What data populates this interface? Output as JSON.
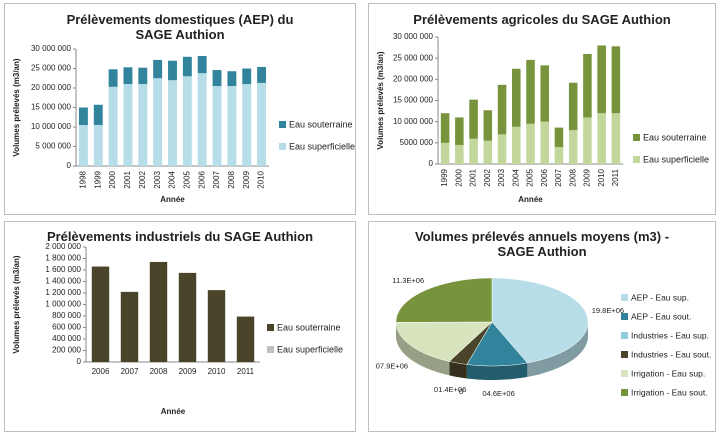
{
  "chart_data": [
    {
      "type": "bar",
      "title": "Prélèvements domestiques (AEP) du SAGE Authion",
      "x_label": "Année",
      "y_label": "Volumes prélevés (m3/an)",
      "categories": [
        "1998",
        "1999",
        "2000",
        "2001",
        "2002",
        "2003",
        "2004",
        "2005",
        "2006",
        "2007",
        "2008",
        "2009",
        "2010"
      ],
      "series": [
        {
          "name": "Eau superficielle",
          "color": "#b7dde8",
          "values": [
            10500000,
            10500000,
            20300000,
            21000000,
            21000000,
            22500000,
            22000000,
            23000000,
            23800000,
            20500000,
            20500000,
            21000000,
            21300000
          ]
        },
        {
          "name": "Eau souterraine",
          "color": "#31849b",
          "values": [
            4500000,
            5200000,
            4500000,
            4300000,
            4200000,
            4700000,
            5000000,
            5000000,
            4400000,
            4100000,
            3800000,
            4000000,
            4100000
          ]
        }
      ],
      "ylim": [
        0,
        30000000
      ],
      "yticks": [
        0,
        {
          "value": 5000000,
          "label": "5 000 000"
        },
        {
          "value": 10000000,
          "label": "10 000 000"
        },
        {
          "value": 15000000,
          "label": "15 000 000"
        },
        {
          "value": 20000000,
          "label": "20 000 000"
        },
        {
          "value": 25000000,
          "label": "25 000 000"
        },
        {
          "value": 30000000,
          "label": "30 000 000"
        }
      ],
      "grid": false
    },
    {
      "type": "bar",
      "title": "Prélèvements agricoles du SAGE Authion",
      "x_label": "Année",
      "y_label": "Volumes prélevés (m3/an)",
      "categories": [
        "1999",
        "2000",
        "2001",
        "2002",
        "2003",
        "2004",
        "2005",
        "2006",
        "2007",
        "2008",
        "2009",
        "2010",
        "2011"
      ],
      "series": [
        {
          "name": "Eau superficielle",
          "color": "#c3d69b",
          "values": [
            5000000,
            4500000,
            6000000,
            5500000,
            7000000,
            8800000,
            9500000,
            10000000,
            4000000,
            8000000,
            11000000,
            12000000,
            12000000
          ]
        },
        {
          "name": "Eau souterraine",
          "color": "#77933c",
          "values": [
            7000000,
            6500000,
            9200000,
            7200000,
            11700000,
            13700000,
            15100000,
            13300000,
            4600000,
            11200000,
            15000000,
            16000000,
            15800000
          ]
        }
      ],
      "ylim": [
        0,
        30000000
      ],
      "yticks": [
        0,
        {
          "value": 5000000,
          "label": "5000 000"
        },
        {
          "value": 10000000,
          "label": "10 000 000"
        },
        {
          "value": 15000000,
          "label": "15 000 000"
        },
        {
          "value": 20000000,
          "label": "20 000 000"
        },
        {
          "value": 25000000,
          "label": "25 000 000"
        },
        {
          "value": 30000000,
          "label": "30 000 000"
        }
      ],
      "grid": false
    },
    {
      "type": "bar",
      "title": "Prélèvements industriels du SAGE Authion",
      "x_label": "Année",
      "y_label": "Volumes prélevés (m3/an)",
      "categories": [
        "2006",
        "2007",
        "2008",
        "2009",
        "2010",
        "2011"
      ],
      "series": [
        {
          "name": "Eau superficielle",
          "color": "#bfbfbf",
          "values": [
            0,
            0,
            0,
            0,
            0,
            0
          ]
        },
        {
          "name": "Eau souterraine",
          "color": "#4a452a",
          "values": [
            1660000,
            1220000,
            1740000,
            1550000,
            1250000,
            790000
          ]
        }
      ],
      "ylim": [
        0,
        2000000
      ],
      "yticks": [
        0,
        {
          "value": 200000,
          "label": "200 000"
        },
        {
          "value": 400000,
          "label": "400 000"
        },
        {
          "value": 600000,
          "label": "600 000"
        },
        {
          "value": 800000,
          "label": "800 000"
        },
        {
          "value": 1000000,
          "label": "1 000 000"
        },
        {
          "value": 1200000,
          "label": "1 200 000"
        },
        {
          "value": 1400000,
          "label": "1 400 000"
        },
        {
          "value": 1600000,
          "label": "1 600 000"
        },
        {
          "value": 1800000,
          "label": "1 800 000"
        },
        {
          "value": 2000000,
          "label": "2 000 000"
        }
      ],
      "grid": false
    },
    {
      "type": "pie",
      "title": "Volumes prélevés annuels moyens (m3) - SAGE Authion",
      "categories": [
        "AEP - Eau sup.",
        "AEP - Eau sout.",
        "Industries - Eau sup.",
        "Industries - Eau sout.",
        "Irrigation - Eau sup.",
        "Irrigation - Eau sout."
      ],
      "values": [
        19800000,
        4600000,
        0,
        1400000,
        7900000,
        11300000
      ],
      "value_labels": [
        "19.8E+06",
        "04.6E+06",
        "0",
        "01.4E+06",
        "07.9E+06",
        "11.3E+06"
      ],
      "colors": [
        "#b7dde8",
        "#31849b",
        "#93cddd",
        "#4a452a",
        "#d7e4bd",
        "#77933c"
      ]
    }
  ]
}
